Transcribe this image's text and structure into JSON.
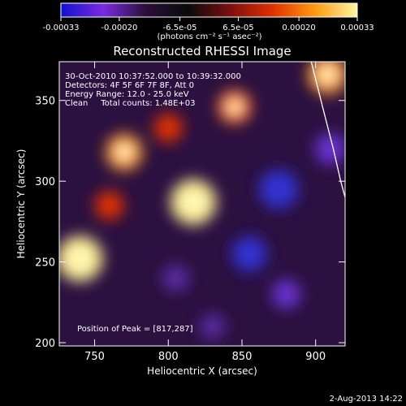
{
  "chart_data": {
    "type": "heatmap",
    "title": "Reconstructed RHESSI Image",
    "xlabel": "Heliocentric X (arcsec)",
    "ylabel": "Heliocentric Y (arcsec)",
    "xlim": [
      726,
      920
    ],
    "ylim": [
      198,
      374
    ],
    "xticks": [
      750,
      800,
      850,
      900
    ],
    "yticks": [
      200,
      250,
      300,
      350
    ],
    "colorbar": {
      "range": [
        -0.00033,
        0.00033
      ],
      "tick_labels": [
        "-0.00033",
        "-0.00020",
        "-6.5e-05",
        "6.5e-05",
        "0.00020",
        "0.00033"
      ],
      "label": "(photons cm⁻² s⁻¹ asec⁻²)",
      "colors": [
        "#1010d0",
        "#7a2be0",
        "#2a0f3a",
        "#0a0a0a",
        "#7a1010",
        "#e03000",
        "#ff9a10",
        "#fff6a0"
      ]
    },
    "annotations": {
      "time_range": "30-Oct-2010 10:37:52.000 to 10:39:32.000",
      "detectors": "Detectors: 4F 5F 6F 7F 8F, Att 0",
      "energy_range": "Energy Range: 12.0 - 25.0 keV",
      "method": "Clean     Total counts: 1.48E+03",
      "peak": "Position of Peak = [817,287]"
    },
    "features": [
      {
        "kind": "bright",
        "x": 740,
        "y": 252,
        "value": 0.00033
      },
      {
        "kind": "bright",
        "x": 817,
        "y": 287,
        "value": 0.00033
      },
      {
        "kind": "bright",
        "x": 770,
        "y": 318,
        "value": 0.00022
      },
      {
        "kind": "bright",
        "x": 845,
        "y": 346,
        "value": 0.00018
      },
      {
        "kind": "bright",
        "x": 908,
        "y": 366,
        "value": 0.00025
      },
      {
        "kind": "bright",
        "x": 760,
        "y": 285,
        "value": 0.00012
      },
      {
        "kind": "bright",
        "x": 800,
        "y": 333,
        "value": 0.00012
      },
      {
        "kind": "dim",
        "x": 875,
        "y": 295,
        "value": -0.00025
      },
      {
        "kind": "dim",
        "x": 855,
        "y": 255,
        "value": -0.0002
      },
      {
        "kind": "dim",
        "x": 805,
        "y": 240,
        "value": -0.0001
      },
      {
        "kind": "dim",
        "x": 880,
        "y": 230,
        "value": -0.00012
      },
      {
        "kind": "dim",
        "x": 910,
        "y": 320,
        "value": -0.00015
      },
      {
        "kind": "dim",
        "x": 830,
        "y": 210,
        "value": -8e-05
      }
    ],
    "limb_curve": [
      [
        897,
        374
      ],
      [
        905,
        345
      ],
      [
        912,
        320
      ],
      [
        917,
        300
      ],
      [
        920,
        290
      ]
    ]
  },
  "footer": {
    "date": "2-Aug-2013 14:22"
  }
}
